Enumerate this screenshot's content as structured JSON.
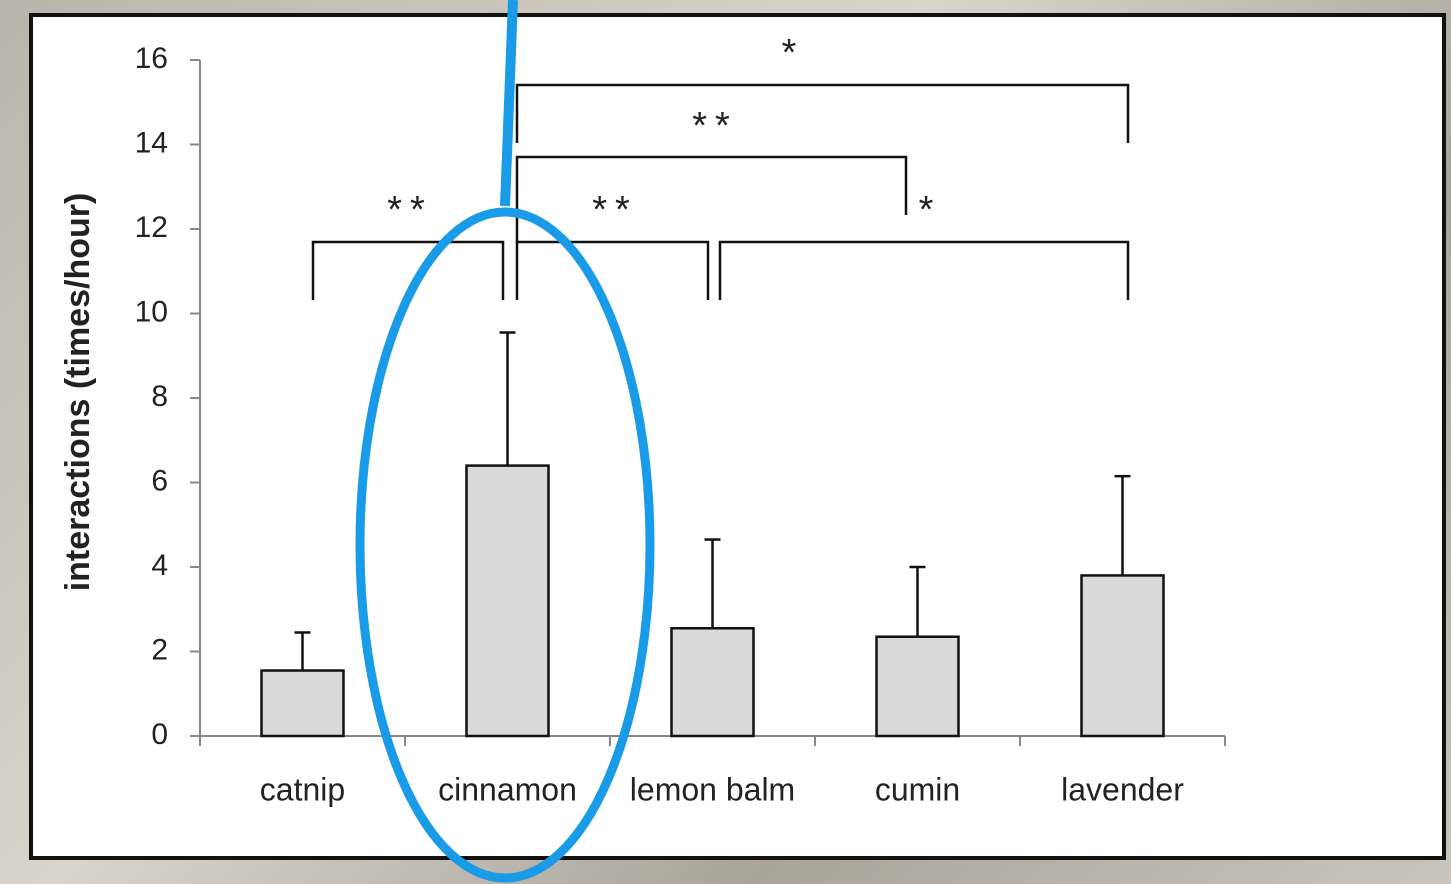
{
  "chart_data": {
    "type": "bar",
    "y_label": "interactions (times/hour)",
    "categories": [
      "catnip",
      "cinnamon",
      "lemon balm",
      "cumin",
      "lavender"
    ],
    "values": [
      1.55,
      6.4,
      2.55,
      2.35,
      3.8
    ],
    "errors": [
      0.9,
      3.15,
      2.1,
      1.65,
      2.35
    ],
    "color": "#d9d9d9",
    "ylim": [
      0,
      16
    ],
    "yticks": [
      0,
      2,
      4,
      6,
      8,
      10,
      12,
      14,
      16
    ],
    "grid": false,
    "significance": [
      {
        "groups": [
          0,
          1
        ],
        "label": "**"
      },
      {
        "groups": [
          1,
          2
        ],
        "label": "**"
      },
      {
        "groups": [
          2,
          4
        ],
        "label": "*"
      },
      {
        "groups": [
          1,
          3
        ],
        "label": "**"
      },
      {
        "groups": [
          1,
          4
        ],
        "label": "*"
      }
    ]
  }
}
